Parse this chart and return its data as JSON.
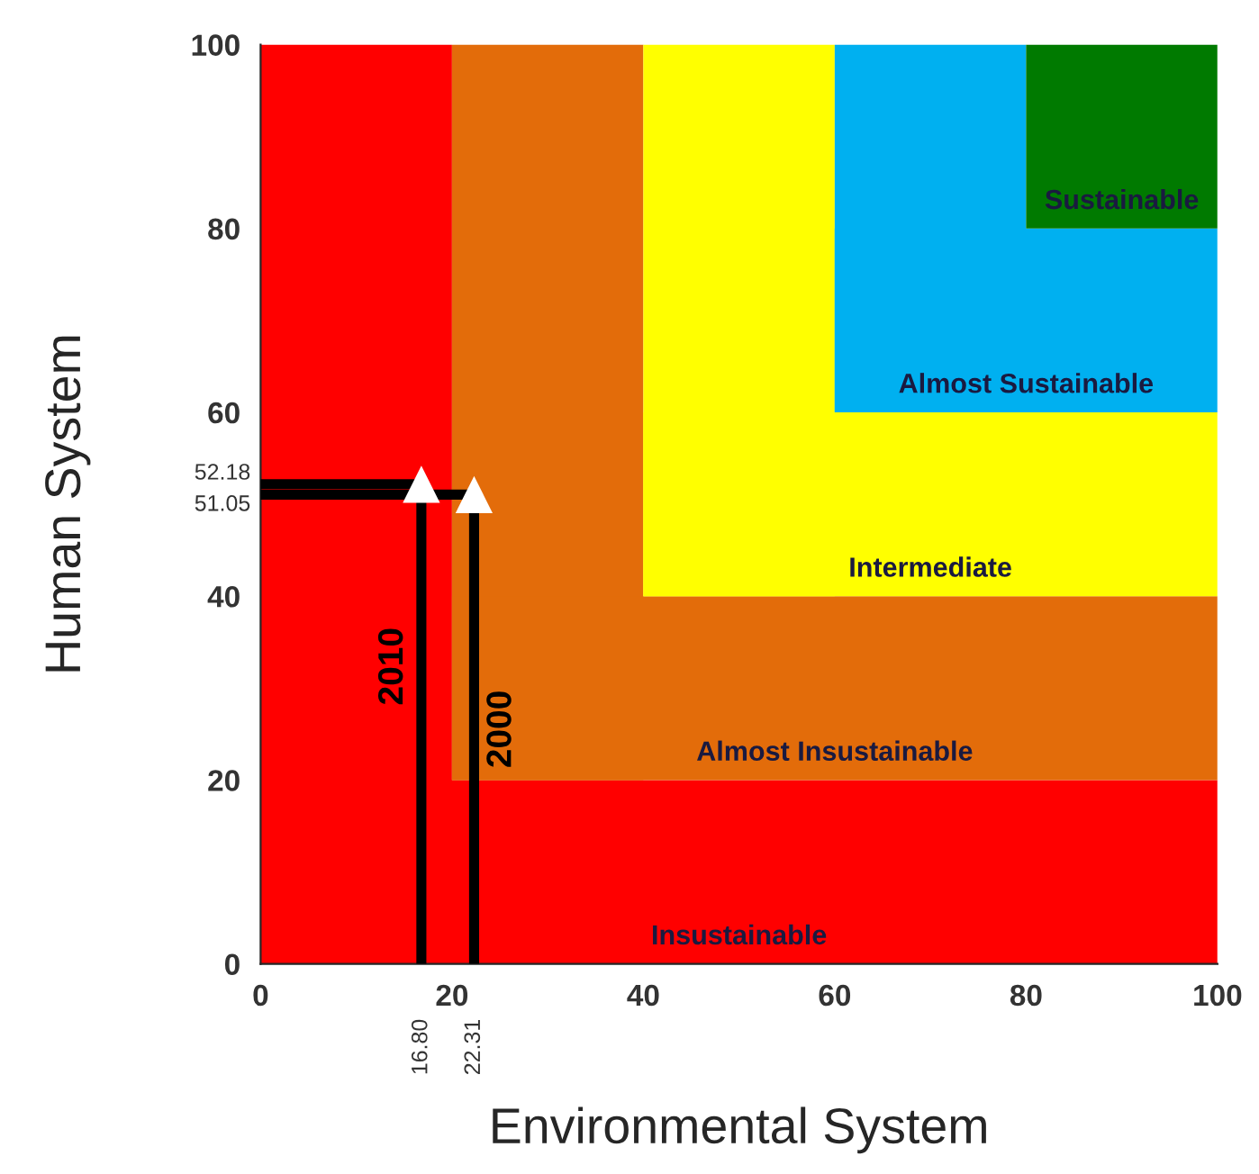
{
  "chart_data": {
    "type": "scatter",
    "xlabel": "Environmental System",
    "ylabel": "Human System",
    "xlim": [
      0,
      100
    ],
    "ylim": [
      0,
      100
    ],
    "xticks": [
      0,
      20,
      40,
      60,
      80,
      100
    ],
    "yticks": [
      0,
      20,
      40,
      60,
      80,
      100
    ],
    "grid": false,
    "bands": [
      {
        "axis": "x",
        "from": 0,
        "to": 20,
        "color": "#ff0000"
      },
      {
        "axis": "y",
        "from": 0,
        "to": 20,
        "label": "Insustainable",
        "color": "#ff0000"
      },
      {
        "axis": "x",
        "from": 20,
        "to": 40,
        "color": "#e36c0a"
      },
      {
        "axis": "y",
        "from": 20,
        "to": 40,
        "label": "Almost Insustainable",
        "color": "#e36c0a"
      },
      {
        "axis": "x",
        "from": 40,
        "to": 60,
        "color": "#ffff00"
      },
      {
        "axis": "y",
        "from": 40,
        "to": 60,
        "label": "Intermediate",
        "color": "#ffff00"
      },
      {
        "axis": "x",
        "from": 60,
        "to": 80,
        "color": "#00b0f0"
      },
      {
        "axis": "y",
        "from": 60,
        "to": 80,
        "label": "Almost Sustainable",
        "color": "#00b0f0"
      },
      {
        "axis": "y",
        "from": 80,
        "to": 100,
        "label": "Sustainable",
        "color": "#007a00"
      }
    ],
    "series": [
      {
        "type": "line",
        "name": "2010",
        "color": "#000000",
        "x": [
          0,
          16.8,
          16.8
        ],
        "values": [
          52.18,
          52.18,
          0
        ]
      },
      {
        "type": "line",
        "name": "2000",
        "color": "#000000",
        "x": [
          0,
          22.31,
          22.31
        ],
        "values": [
          51.05,
          51.05,
          0
        ]
      },
      {
        "color": "#ffffff",
        "marker": "triangle",
        "x": [
          16.8,
          22.31
        ],
        "values": [
          52.18,
          51.05
        ]
      }
    ],
    "annotations": [
      "52.18",
      "51.05",
      "16.80",
      "22.31"
    ]
  }
}
